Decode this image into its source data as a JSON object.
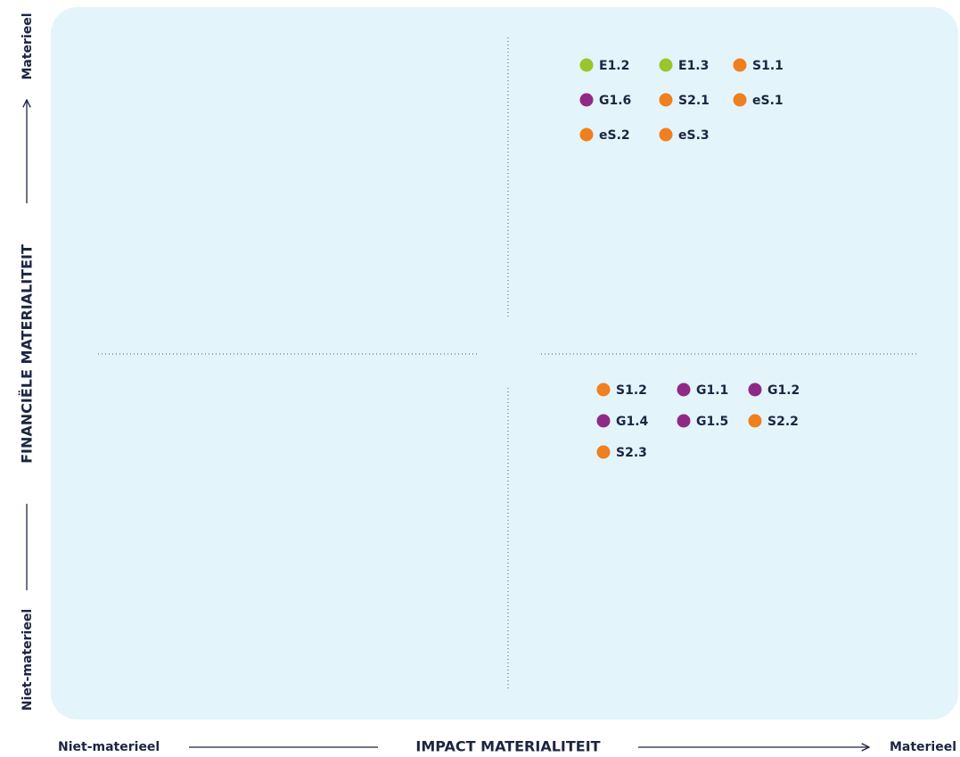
{
  "x_axis": {
    "title": "IMPACT MATERIALITEIT",
    "low": "Niet-materieel",
    "high": "Materieel"
  },
  "y_axis": {
    "title": "FINANCIËLE MATERIALITEIT",
    "low": "Niet-materieel",
    "high": "Materieel"
  },
  "quadrants": [
    {
      "items": [
        {
          "label": "E1.2",
          "color": "#9cc52b"
        },
        {
          "label": "E1.3",
          "color": "#9cc52b"
        },
        {
          "label": "S1.1",
          "color": "#f07f1e"
        },
        {
          "label": "G1.6",
          "color": "#8e2a86"
        },
        {
          "label": "S2.1",
          "color": "#f07f1e"
        },
        {
          "label": "eS.1",
          "color": "#f07f1e"
        },
        {
          "label": "eS.2",
          "color": "#f07f1e"
        },
        {
          "label": "eS.3",
          "color": "#f07f1e"
        }
      ]
    },
    {
      "items": [
        {
          "label": "S1.2",
          "color": "#f07f1e"
        },
        {
          "label": "G1.1",
          "color": "#8e2a86"
        },
        {
          "label": "G1.2",
          "color": "#8e2a86"
        },
        {
          "label": "G1.4",
          "color": "#8e2a86"
        },
        {
          "label": "G1.5",
          "color": "#8e2a86"
        },
        {
          "label": "S2.2",
          "color": "#f07f1e"
        },
        {
          "label": "S2.3",
          "color": "#f07f1e"
        }
      ]
    }
  ]
}
